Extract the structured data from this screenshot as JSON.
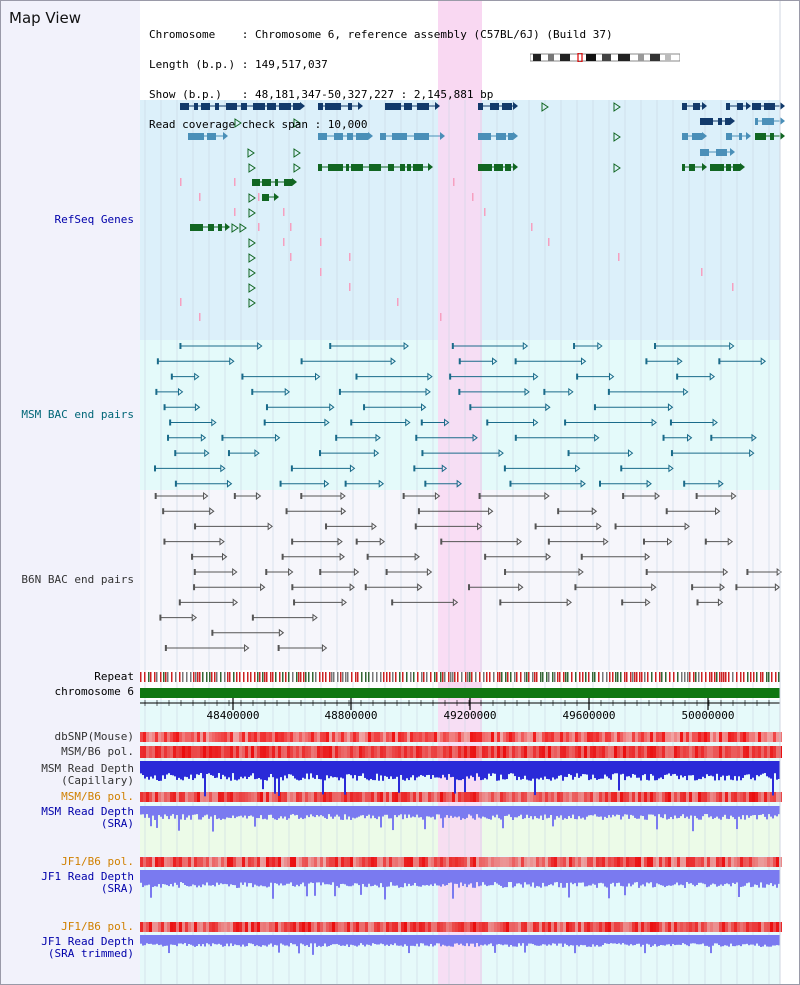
{
  "header": {
    "title": "Map View",
    "info_lines": [
      "Chromosome    : Chromosome 6, reference assembly (C57BL/6J) (Build 37)",
      "Length (b.p.) : 149,517,037",
      "Show (b.p.)   : 48,181,347-50,327,227 : 2,145,881 bp",
      "Read coverage check span : 10,000"
    ]
  },
  "tracks": {
    "refseq": {
      "label": "RefSeq Genes",
      "color": "#0000aa"
    },
    "msm_bac": {
      "label": "MSM BAC end pairs",
      "color": "#006677"
    },
    "b6n_bac": {
      "label": "B6N BAC end pairs",
      "color": "#333333"
    },
    "repeat": {
      "label": "Repeat",
      "color": "#000000"
    },
    "chromosome": {
      "label": "chromosome 6",
      "color": "#000000"
    },
    "dbsnp": {
      "label": "dbSNP(Mouse)",
      "color": "#333333"
    },
    "msm_b6_pol_1": {
      "label": "MSM/B6 pol.",
      "color": "#333333"
    },
    "msm_depth_cap": {
      "label": "MSM Read Depth\n(Capillary)",
      "color": "#333333"
    },
    "msm_b6_pol_2": {
      "label": "MSM/B6 pol.",
      "color": "#d08000"
    },
    "msm_depth_sra": {
      "label": "MSM Read Depth\n(SRA)",
      "color": "#0000aa"
    },
    "jf1_b6_pol_1": {
      "label": "JF1/B6 pol.",
      "color": "#d08000"
    },
    "jf1_depth_sra": {
      "label": "JF1 Read Depth\n(SRA)",
      "color": "#0000aa"
    },
    "jf1_b6_pol_2": {
      "label": "JF1/B6 pol.",
      "color": "#d08000"
    },
    "jf1_depth_trim": {
      "label": "JF1 Read Depth\n(SRA trimmed)",
      "color": "#0000aa"
    }
  },
  "axis": {
    "ticks": [
      "48400000",
      "48800000",
      "49200000",
      "49600000",
      "50000000"
    ]
  },
  "colors": {
    "highlight": "#f9d8f2",
    "refseq_bg": "#dcf0fa",
    "msm_bg": "#e4fafa",
    "b6n_bg": "#f6f6fb",
    "gene_dark": "#123a6b",
    "gene_mid": "#4a8fb8",
    "gene_green": "#116622",
    "pink_marks": "#f6a0c0",
    "msm_line": "#1a6b8a",
    "b6n_line": "#555555",
    "depth_blue": "#2a2ad8",
    "depth_light": "#7a7af0"
  }
}
